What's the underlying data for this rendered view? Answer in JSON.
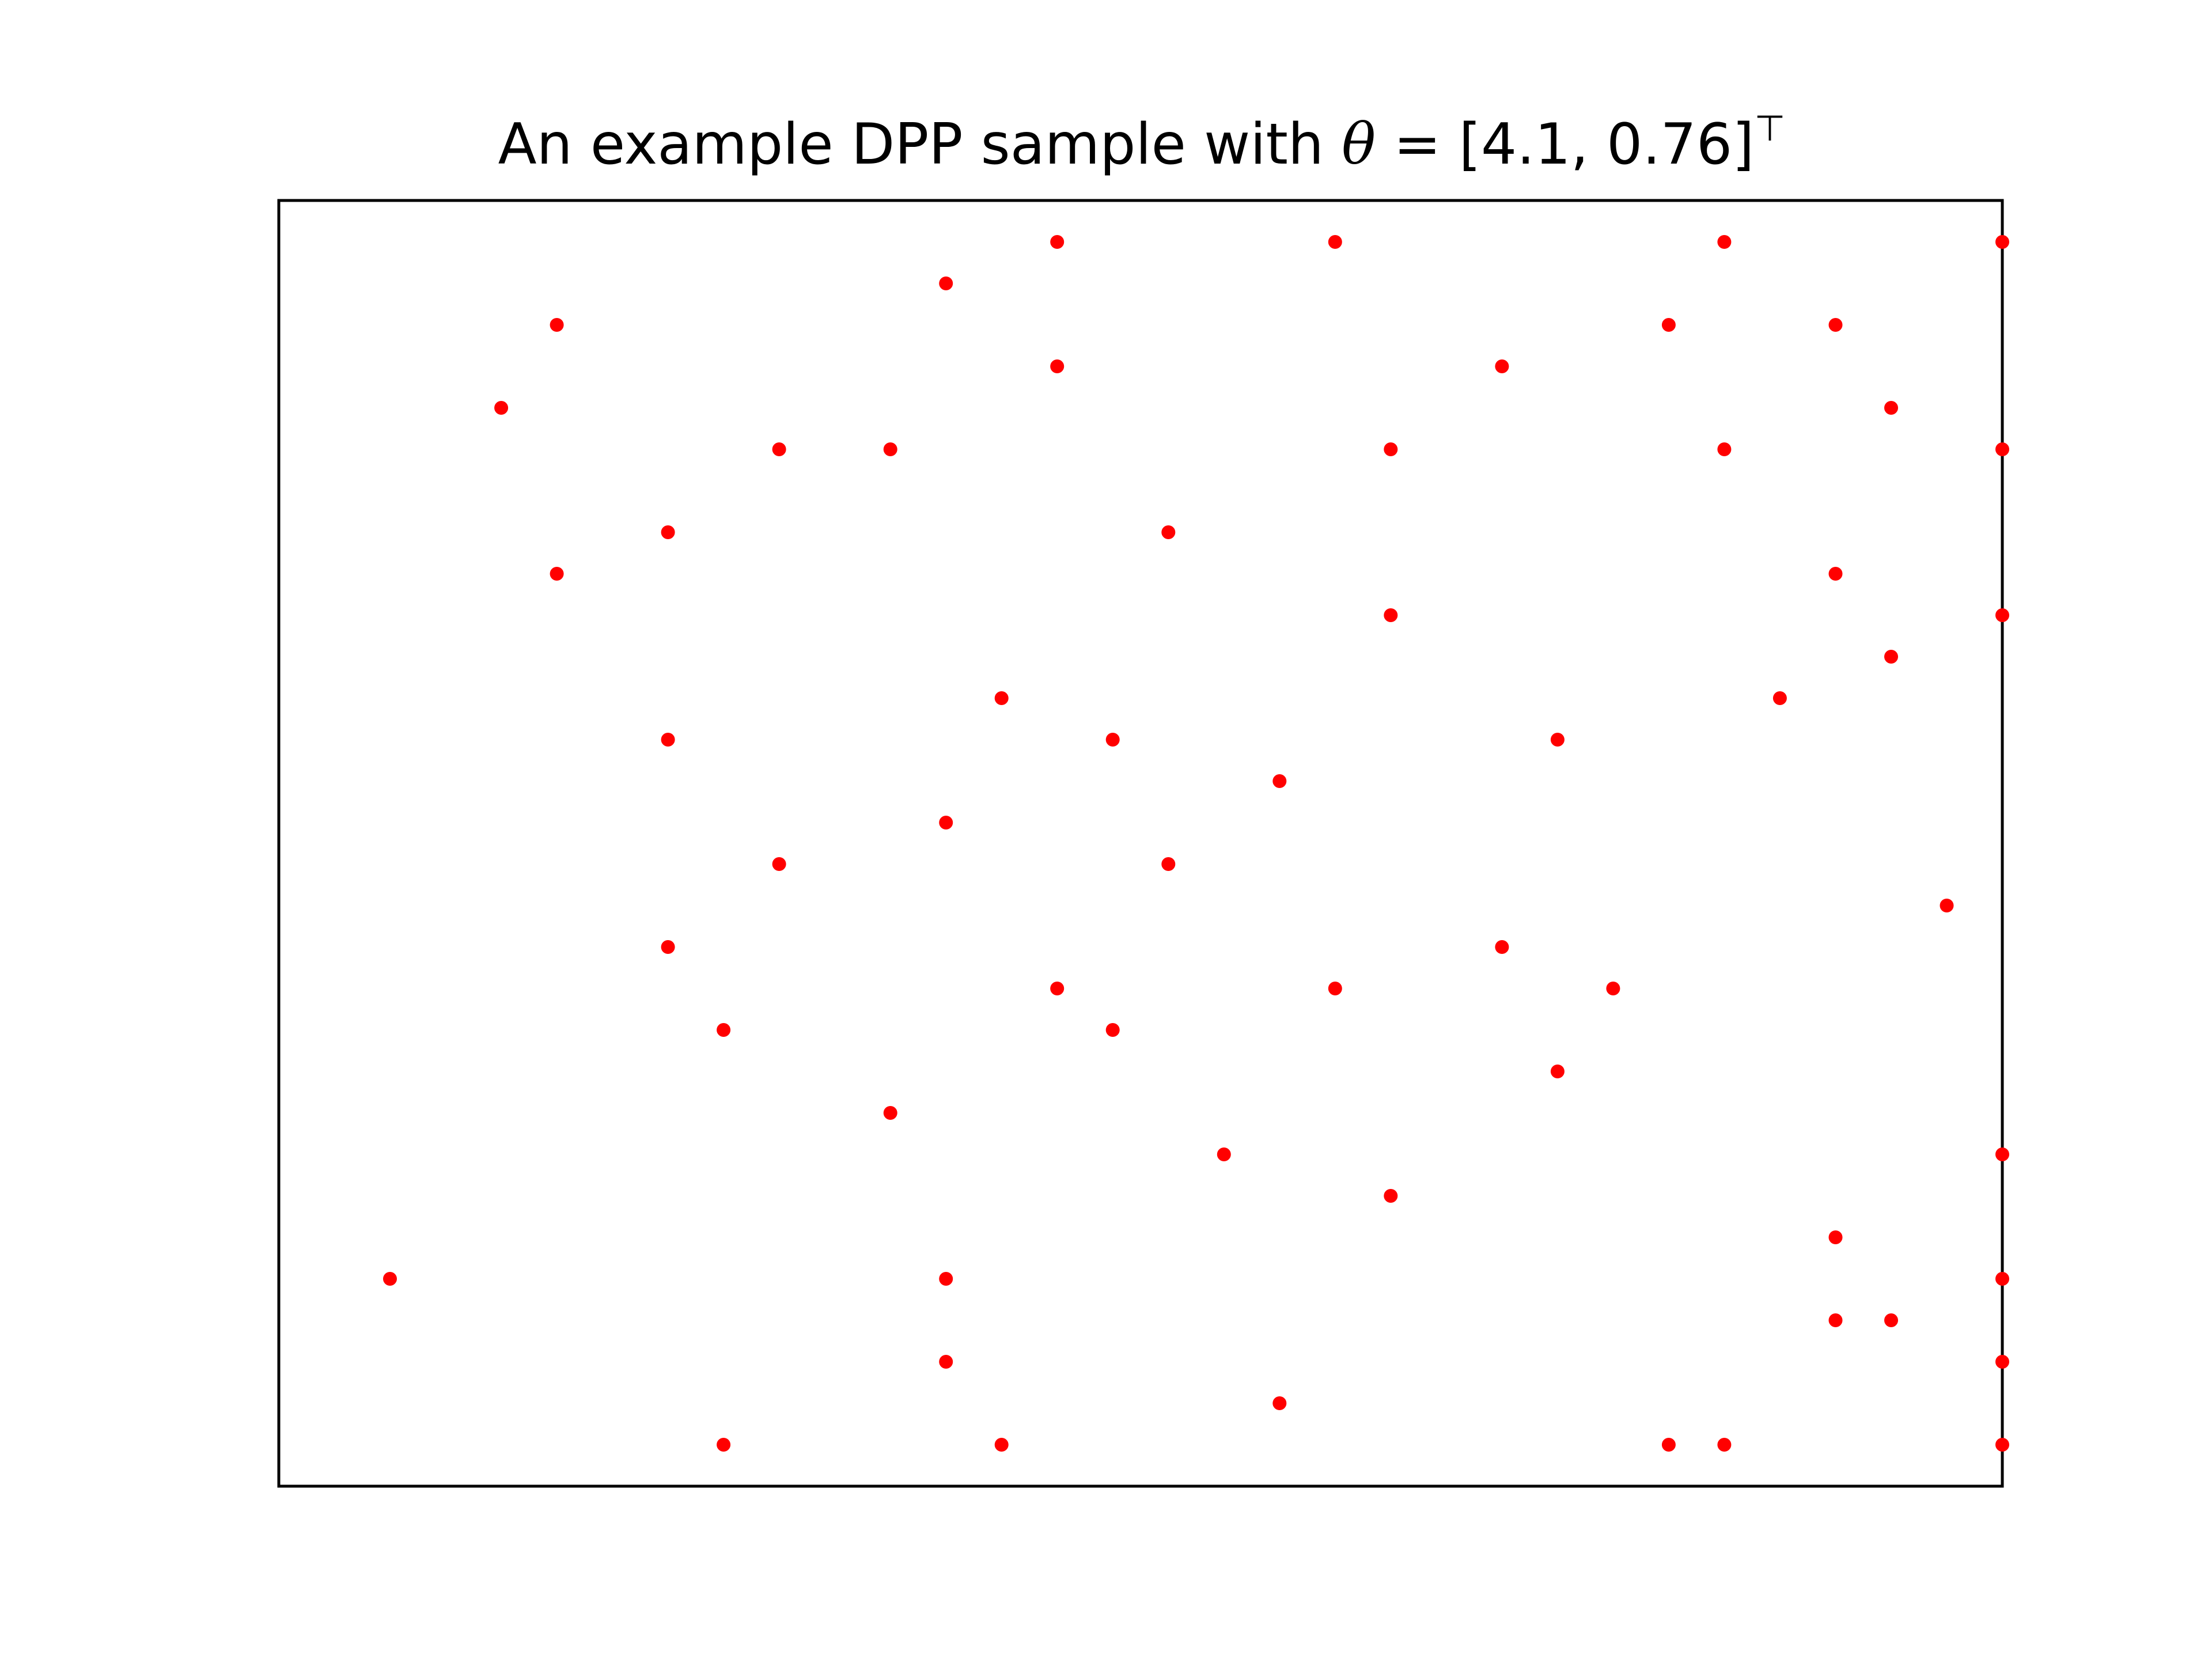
{
  "chart_data": {
    "type": "scatter",
    "title": {
      "prefix": "An example DPP sample with ",
      "symbol": "θ",
      "suffix": " = [4.1, 0.76]",
      "superscript": "⊤"
    },
    "xlabel": "",
    "ylabel": "",
    "xlim": [
      -1,
      30
    ],
    "ylim": [
      -1,
      30
    ],
    "grid": false,
    "ticks_shown": false,
    "marker_color": "#ff0000",
    "points": [
      {
        "x": 13,
        "y": 29
      },
      {
        "x": 18,
        "y": 29
      },
      {
        "x": 25,
        "y": 29
      },
      {
        "x": 30,
        "y": 29
      },
      {
        "x": 11,
        "y": 28
      },
      {
        "x": 4,
        "y": 27
      },
      {
        "x": 24,
        "y": 27
      },
      {
        "x": 27,
        "y": 27
      },
      {
        "x": 13,
        "y": 26
      },
      {
        "x": 21,
        "y": 26
      },
      {
        "x": 3,
        "y": 25
      },
      {
        "x": 28,
        "y": 25
      },
      {
        "x": 8,
        "y": 24
      },
      {
        "x": 10,
        "y": 24
      },
      {
        "x": 19,
        "y": 24
      },
      {
        "x": 25,
        "y": 24
      },
      {
        "x": 30,
        "y": 24
      },
      {
        "x": 6,
        "y": 22
      },
      {
        "x": 15,
        "y": 22
      },
      {
        "x": 4,
        "y": 21
      },
      {
        "x": 27,
        "y": 21
      },
      {
        "x": 19,
        "y": 20
      },
      {
        "x": 30,
        "y": 20
      },
      {
        "x": 28,
        "y": 19
      },
      {
        "x": 12,
        "y": 18
      },
      {
        "x": 26,
        "y": 18
      },
      {
        "x": 6,
        "y": 17
      },
      {
        "x": 14,
        "y": 17
      },
      {
        "x": 22,
        "y": 17
      },
      {
        "x": 17,
        "y": 16
      },
      {
        "x": 11,
        "y": 15
      },
      {
        "x": 8,
        "y": 14
      },
      {
        "x": 15,
        "y": 14
      },
      {
        "x": 29,
        "y": 13
      },
      {
        "x": 6,
        "y": 12
      },
      {
        "x": 21,
        "y": 12
      },
      {
        "x": 13,
        "y": 11
      },
      {
        "x": 18,
        "y": 11
      },
      {
        "x": 23,
        "y": 11
      },
      {
        "x": 7,
        "y": 10
      },
      {
        "x": 14,
        "y": 10
      },
      {
        "x": 22,
        "y": 9
      },
      {
        "x": 10,
        "y": 8
      },
      {
        "x": 16,
        "y": 7
      },
      {
        "x": 30,
        "y": 7
      },
      {
        "x": 19,
        "y": 6
      },
      {
        "x": 27,
        "y": 5
      },
      {
        "x": 1,
        "y": 4
      },
      {
        "x": 11,
        "y": 4
      },
      {
        "x": 30,
        "y": 4
      },
      {
        "x": 27,
        "y": 3
      },
      {
        "x": 28,
        "y": 3
      },
      {
        "x": 11,
        "y": 2
      },
      {
        "x": 30,
        "y": 2
      },
      {
        "x": 17,
        "y": 1
      },
      {
        "x": 7,
        "y": 0
      },
      {
        "x": 12,
        "y": 0
      },
      {
        "x": 24,
        "y": 0
      },
      {
        "x": 25,
        "y": 0
      },
      {
        "x": 30,
        "y": 0
      }
    ]
  }
}
